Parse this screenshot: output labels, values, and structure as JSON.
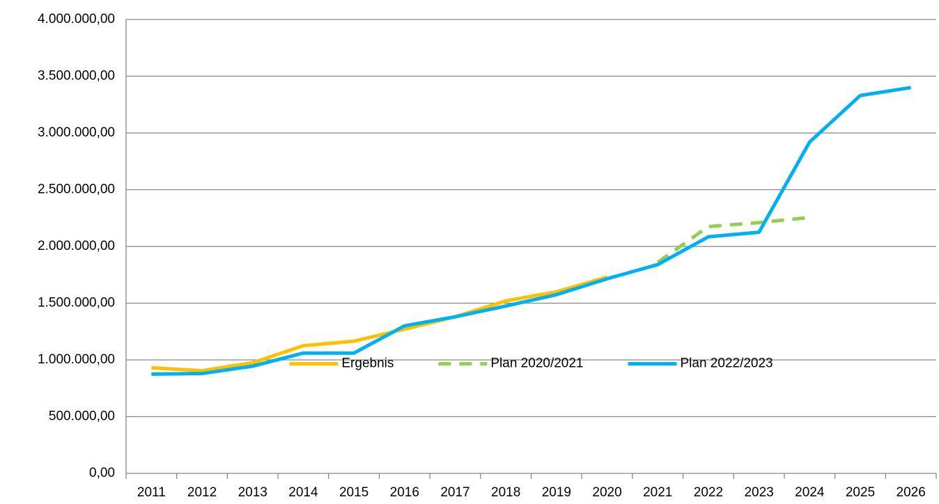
{
  "chart_data": {
    "type": "line",
    "categories": [
      "2011",
      "2012",
      "2013",
      "2014",
      "2015",
      "2016",
      "2017",
      "2018",
      "2019",
      "2020",
      "2021",
      "2022",
      "2023",
      "2024",
      "2025",
      "2026"
    ],
    "series": [
      {
        "name": "Ergebnis",
        "color": "#ffc000",
        "line_style": "solid",
        "values": [
          930000,
          905000,
          975000,
          1125000,
          1165000,
          1270000,
          1380000,
          1520000,
          1600000,
          1730000,
          null,
          null,
          null,
          null,
          null,
          null
        ]
      },
      {
        "name": "Plan 2020/2021",
        "color": "#92d050",
        "line_style": "dashed",
        "values": [
          null,
          null,
          null,
          null,
          null,
          null,
          null,
          null,
          null,
          null,
          1860000,
          2175000,
          2210000,
          2255000,
          null,
          null
        ]
      },
      {
        "name": "Plan 2022/2023",
        "color": "#00b0f0",
        "line_style": "solid",
        "values": [
          875000,
          880000,
          945000,
          1060000,
          1060000,
          1300000,
          1380000,
          1475000,
          1575000,
          1715000,
          1840000,
          2085000,
          2125000,
          2920000,
          3330000,
          3400000
        ]
      }
    ],
    "ylim": [
      0,
      4000000
    ],
    "yticks": [
      {
        "value": 0,
        "label": "0,00"
      },
      {
        "value": 500000,
        "label": "500.000,00"
      },
      {
        "value": 1000000,
        "label": "1.000.000,00"
      },
      {
        "value": 1500000,
        "label": "1.500.000,00"
      },
      {
        "value": 2000000,
        "label": "2.000.000,00"
      },
      {
        "value": 2500000,
        "label": "2.500.000,00"
      },
      {
        "value": 3000000,
        "label": "3.000.000,00"
      },
      {
        "value": 3500000,
        "label": "3.500.000,00"
      },
      {
        "value": 4000000,
        "label": "4.000.000,00"
      }
    ],
    "grid": true,
    "legend": "inside-center"
  }
}
